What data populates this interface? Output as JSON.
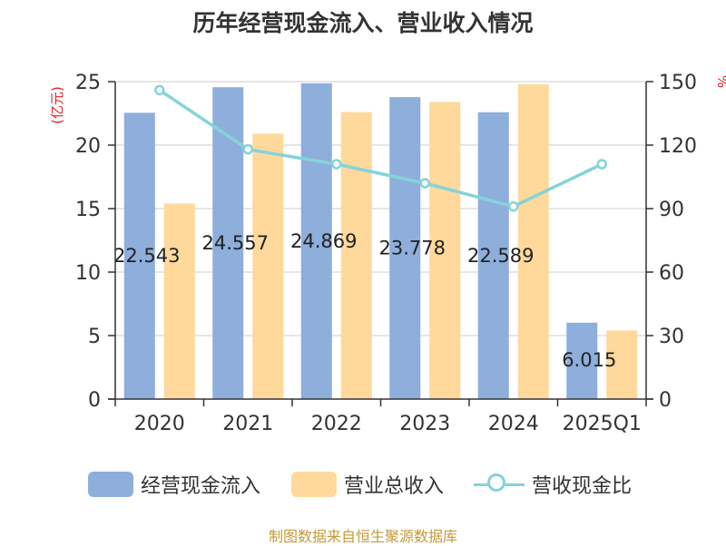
{
  "chart_data": {
    "type": "bar",
    "title": "历年经营现金流入、营业收入情况",
    "categories": [
      "2020",
      "2021",
      "2022",
      "2023",
      "2024",
      "2025Q1"
    ],
    "series": [
      {
        "name": "经营现金流入",
        "type": "bar",
        "axis": "left",
        "color": "#8eaedb",
        "values": [
          22.543,
          24.557,
          24.869,
          23.778,
          22.589,
          6.015
        ],
        "data_labels": [
          "22.543",
          "24.557",
          "24.869",
          "23.778",
          "22.589",
          "6.015"
        ]
      },
      {
        "name": "营业总收入",
        "type": "bar",
        "axis": "left",
        "color": "#fed99b",
        "values": [
          15.4,
          20.9,
          22.6,
          23.4,
          24.8,
          5.4
        ]
      },
      {
        "name": "营收现金比",
        "type": "line",
        "axis": "right",
        "color": "#85d3d8",
        "values": [
          146,
          118,
          111,
          102,
          91,
          111
        ]
      }
    ],
    "ylabel_left": "(亿元)",
    "ylabel_right": "%",
    "ylim_left": [
      0,
      25
    ],
    "ylim_right": [
      0,
      150
    ],
    "yticks_left": [
      "0",
      "5",
      "10",
      "15",
      "20",
      "25"
    ],
    "yticks_right": [
      "0",
      "30",
      "60",
      "90",
      "120",
      "150"
    ],
    "grid": true,
    "legend": "bottom"
  },
  "legend": [
    {
      "label": "经营现金流入",
      "color": "#8eaedb",
      "kind": "bar"
    },
    {
      "label": "营业总收入",
      "color": "#fed99b",
      "kind": "bar"
    },
    {
      "label": "营收现金比",
      "color": "#85d3d8",
      "kind": "line"
    }
  ],
  "source": "制图数据来自恒生聚源数据库"
}
